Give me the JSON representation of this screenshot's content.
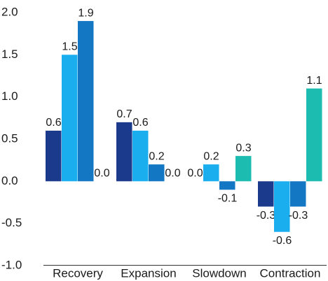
{
  "chart_data": {
    "type": "bar",
    "categories": [
      "Recovery",
      "Expansion",
      "Slowdown",
      "Contraction"
    ],
    "series": [
      {
        "color": "#1b3a8c",
        "values": [
          0.6,
          0.7,
          0.0,
          -0.3
        ],
        "value_labels": [
          "0.6",
          "0.7",
          "0.0",
          "-0.3"
        ]
      },
      {
        "color": "#1aaeef",
        "values": [
          1.5,
          0.6,
          0.2,
          -0.6
        ],
        "value_labels": [
          "1.5",
          "0.6",
          "0.2",
          "-0.6"
        ]
      },
      {
        "color": "#1477c3",
        "values": [
          1.9,
          0.2,
          -0.1,
          -0.3
        ],
        "value_labels": [
          "1.9",
          "0.2",
          "-0.1",
          "-0.3"
        ]
      },
      {
        "color": "#1dbcb0",
        "values": [
          0.0,
          0.0,
          0.3,
          1.1
        ],
        "value_labels": [
          "0.0",
          "0.0",
          "0.3",
          "1.1"
        ]
      }
    ],
    "ylim": [
      -1.0,
      2.0
    ],
    "yticks": [
      {
        "value": 2.0,
        "label": "2.0"
      },
      {
        "value": 1.5,
        "label": "1.5"
      },
      {
        "value": 1.0,
        "label": "1.0"
      },
      {
        "value": 0.5,
        "label": "0.5"
      },
      {
        "value": 0.0,
        "label": "0.0"
      },
      {
        "value": -0.5,
        "label": "-0.5"
      },
      {
        "value": -1.0,
        "label": "-1.0"
      }
    ],
    "grid": false
  }
}
